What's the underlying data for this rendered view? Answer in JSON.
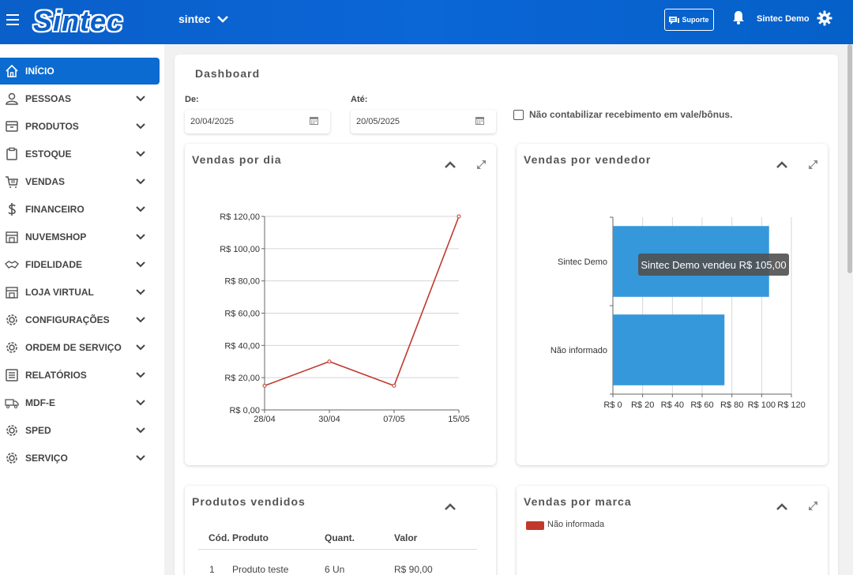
{
  "header": {
    "logo": "Sintec",
    "company": "sintec",
    "support_label": "Suporte",
    "user_name": "Sintec Demo"
  },
  "sidebar": {
    "items": [
      {
        "label": "INÍCIO",
        "icon": "home-icon",
        "active": true
      },
      {
        "label": "PESSOAS",
        "icon": "person-icon"
      },
      {
        "label": "PRODUTOS",
        "icon": "box-icon"
      },
      {
        "label": "ESTOQUE",
        "icon": "clipboard-icon"
      },
      {
        "label": "VENDAS",
        "icon": "cart-icon"
      },
      {
        "label": "FINANCEIRO",
        "icon": "dollar-icon"
      },
      {
        "label": "NUVEMSHOP",
        "icon": "store-icon"
      },
      {
        "label": "FIDELIDADE",
        "icon": "handshake-icon"
      },
      {
        "label": "LOJA VIRTUAL",
        "icon": "store-icon"
      },
      {
        "label": "CONFIGURAÇÕES",
        "icon": "gear-icon"
      },
      {
        "label": "ORDEM DE SERVIÇO",
        "icon": "gear-icon"
      },
      {
        "label": "RELATÓRIOS",
        "icon": "report-icon"
      },
      {
        "label": "MDF-E",
        "icon": "truck-icon"
      },
      {
        "label": "SPED",
        "icon": "gear-icon"
      },
      {
        "label": "SERVIÇO",
        "icon": "gear-icon"
      }
    ]
  },
  "dashboard": {
    "title": "Dashboard",
    "from_label": "De:",
    "from_value": "20/04/2025",
    "to_label": "Até:",
    "to_value": "20/05/2025",
    "checkbox_label": "Não contabilizar recebimento em vale/bônus.",
    "checkbox_checked": false
  },
  "widgets": {
    "sales_by_day": "Vendas por dia",
    "sales_by_seller": "Vendas por vendedor",
    "products_sold": "Produtos vendidos",
    "sales_by_brand": "Vendas por marca"
  },
  "tooltip": "Sintec Demo vendeu R$ 105,00",
  "products_table": {
    "headers": [
      "Cód.",
      "Produto",
      "Quant.",
      "Valor"
    ],
    "rows": [
      [
        "1",
        "Produto teste",
        "6 Un",
        "R$ 90,00"
      ]
    ]
  },
  "brand_legend": {
    "label": "Não informada",
    "color": "#c0392b"
  },
  "chart_data": [
    {
      "type": "line",
      "title": "Vendas por dia",
      "x": [
        "28/04",
        "30/04",
        "07/05",
        "15/05"
      ],
      "series": [
        {
          "values": [
            15,
            30,
            15,
            120
          ]
        }
      ],
      "y_tick_labels": [
        "R$ 0,00",
        "R$ 20,00",
        "R$ 40,00",
        "R$ 60,00",
        "R$ 80,00",
        "R$ 100,00",
        "R$ 120,00"
      ],
      "ylim": [
        0,
        120
      ],
      "grid": true,
      "color": "#c0392b"
    },
    {
      "type": "bar",
      "orientation": "horizontal",
      "title": "Vendas por vendedor",
      "categories": [
        "Sintec Demo",
        "Não informado"
      ],
      "values": [
        105,
        75
      ],
      "x_tick_labels": [
        "R$ 0",
        "R$ 20",
        "R$ 40",
        "R$ 60",
        "R$ 80",
        "R$ 100",
        "R$ 120"
      ],
      "xlim": [
        0,
        120
      ],
      "grid": true,
      "color": "#3498db"
    }
  ]
}
